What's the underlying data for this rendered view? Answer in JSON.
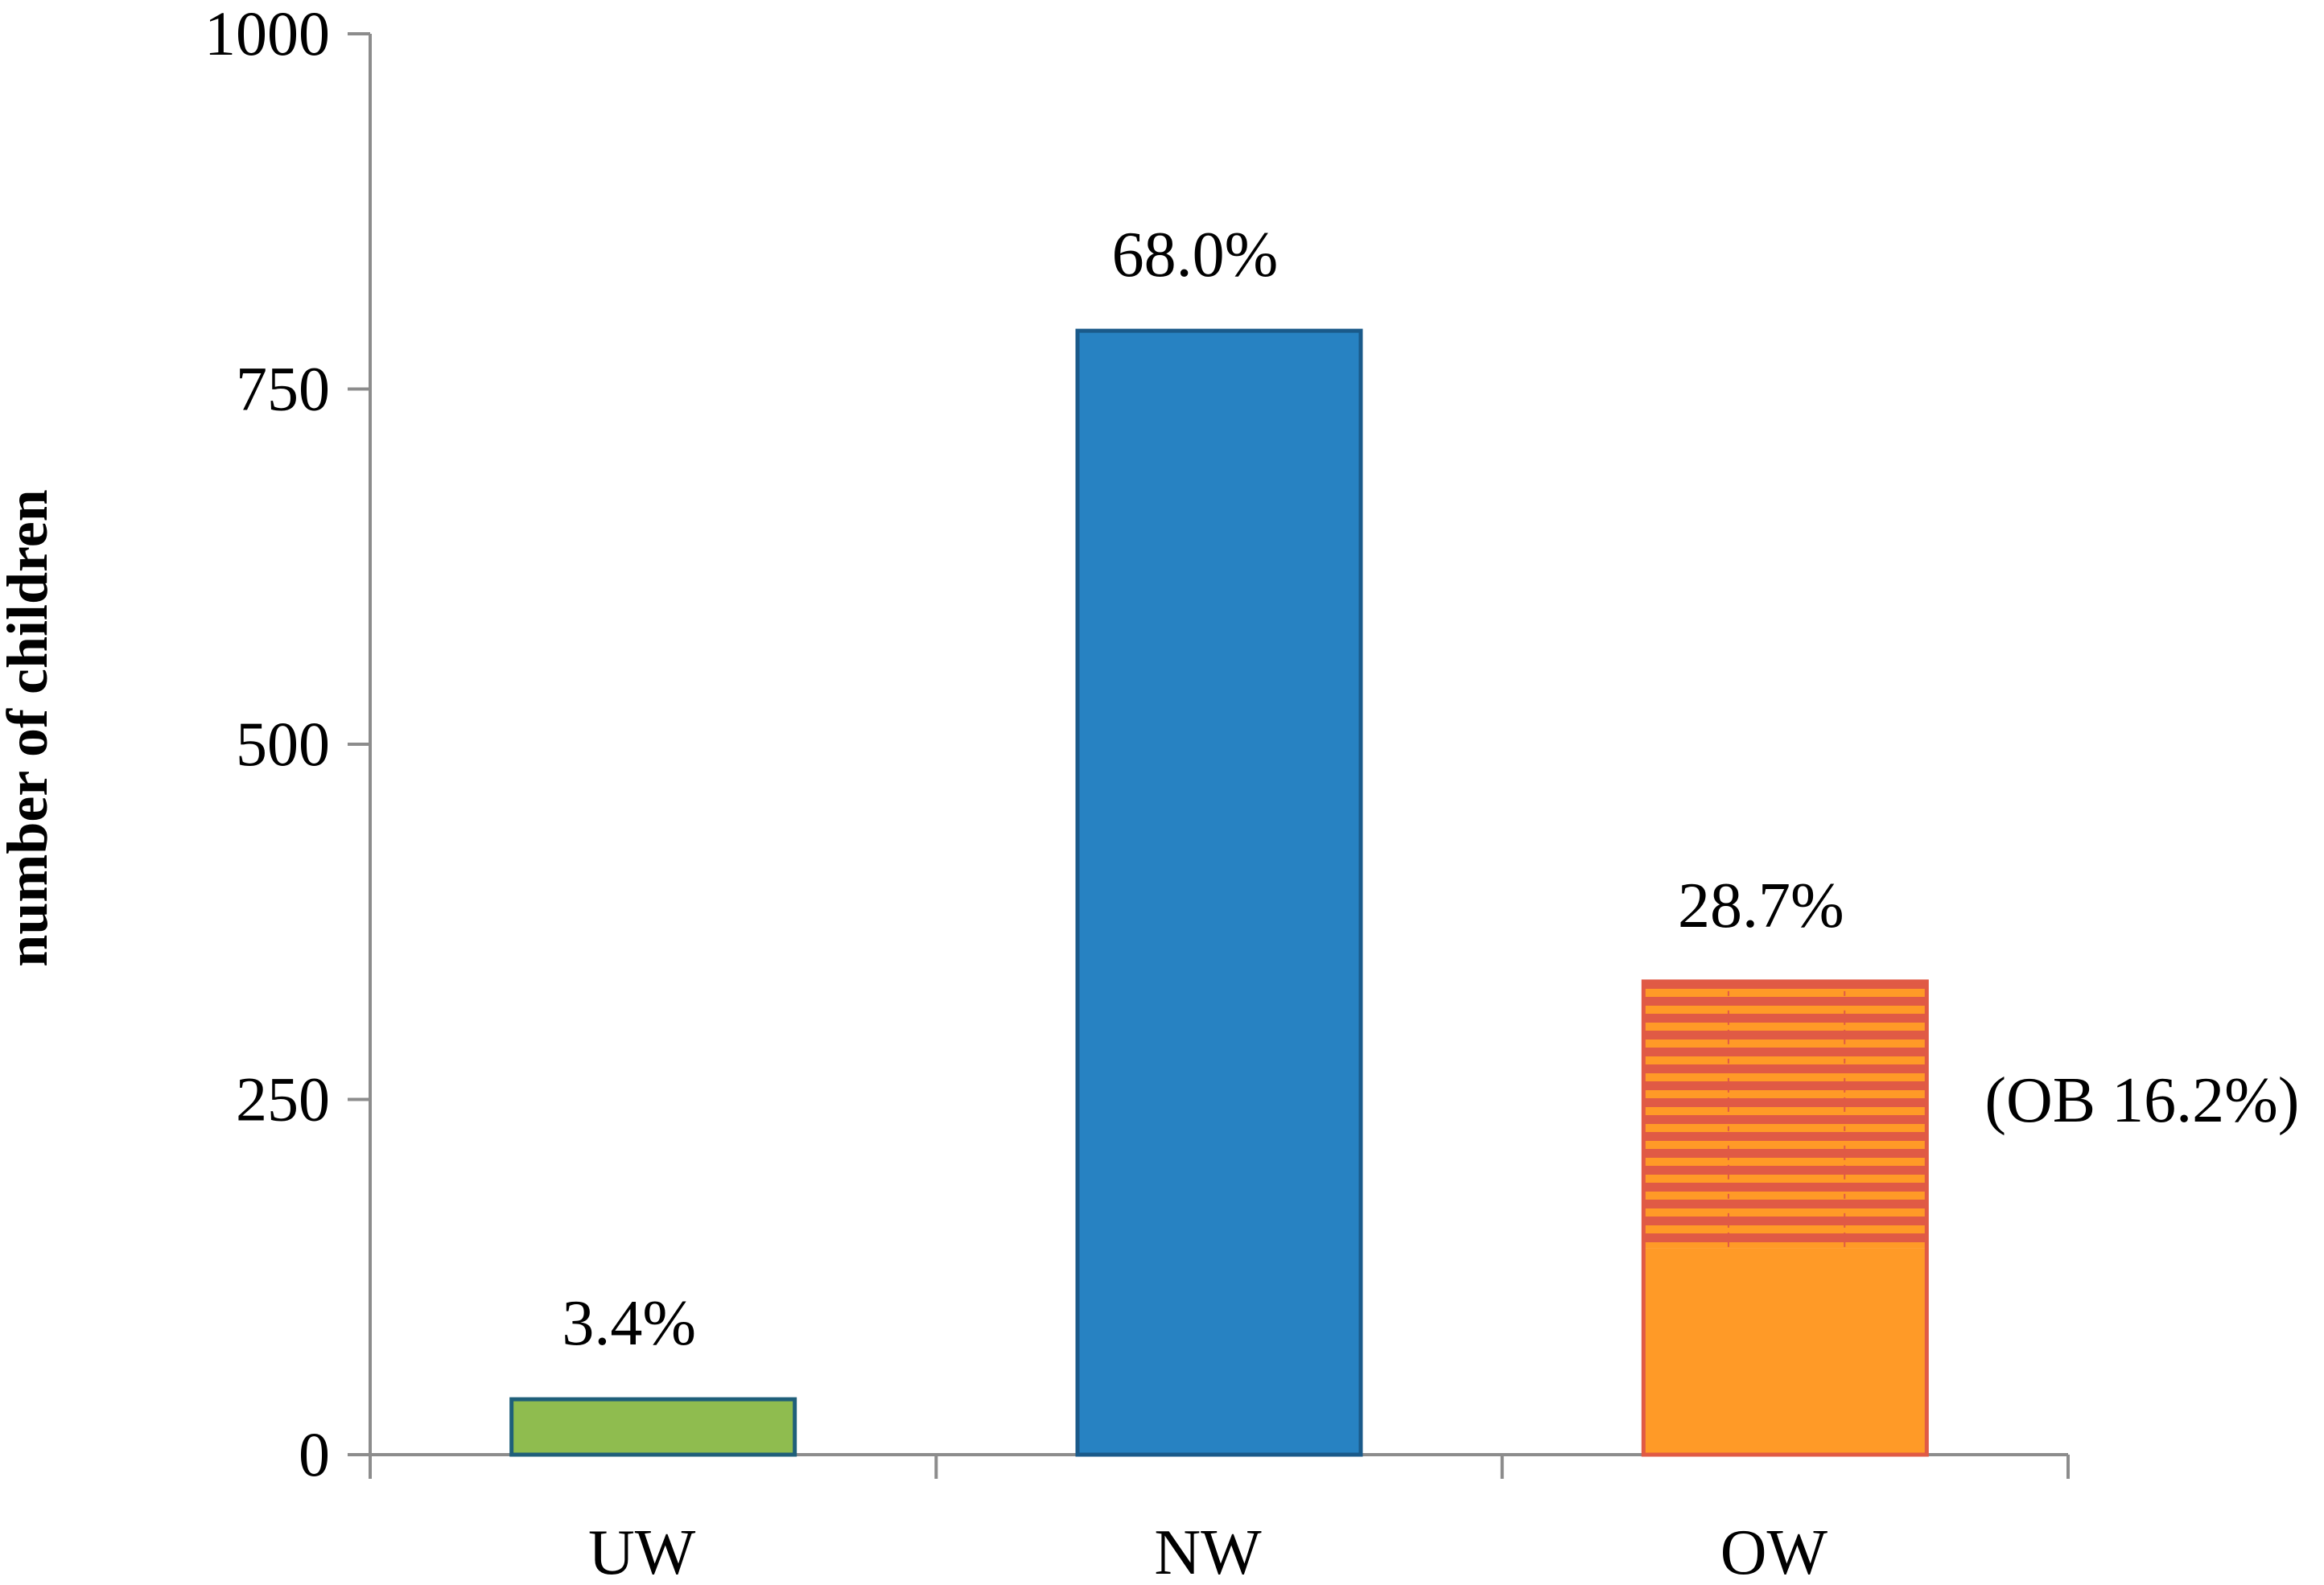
{
  "chart_data": {
    "type": "bar",
    "title": "",
    "xlabel": "",
    "ylabel": "number of children",
    "ylim": [
      0,
      1000
    ],
    "yticks": [
      0,
      250,
      500,
      750,
      1000
    ],
    "grid": false,
    "categories": [
      "UW",
      "NW",
      "OW"
    ],
    "values": [
      39,
      791,
      333
    ],
    "percent_labels": [
      "3.4%",
      "68.0%",
      "28.7%"
    ],
    "stacked_ow": {
      "category": "OW",
      "overweight_base": 145,
      "obese_portion": 188,
      "annotation": "(OB 16.2%)"
    },
    "colors": {
      "UW": "#8fbc4f",
      "NW": "#2782c2",
      "OW": "#ff9a27",
      "OB_stripe": "#e05a45",
      "UW_border": "#1f5f7a",
      "NW_border": "#1a5a8a",
      "OW_border": "#e05a45"
    }
  }
}
